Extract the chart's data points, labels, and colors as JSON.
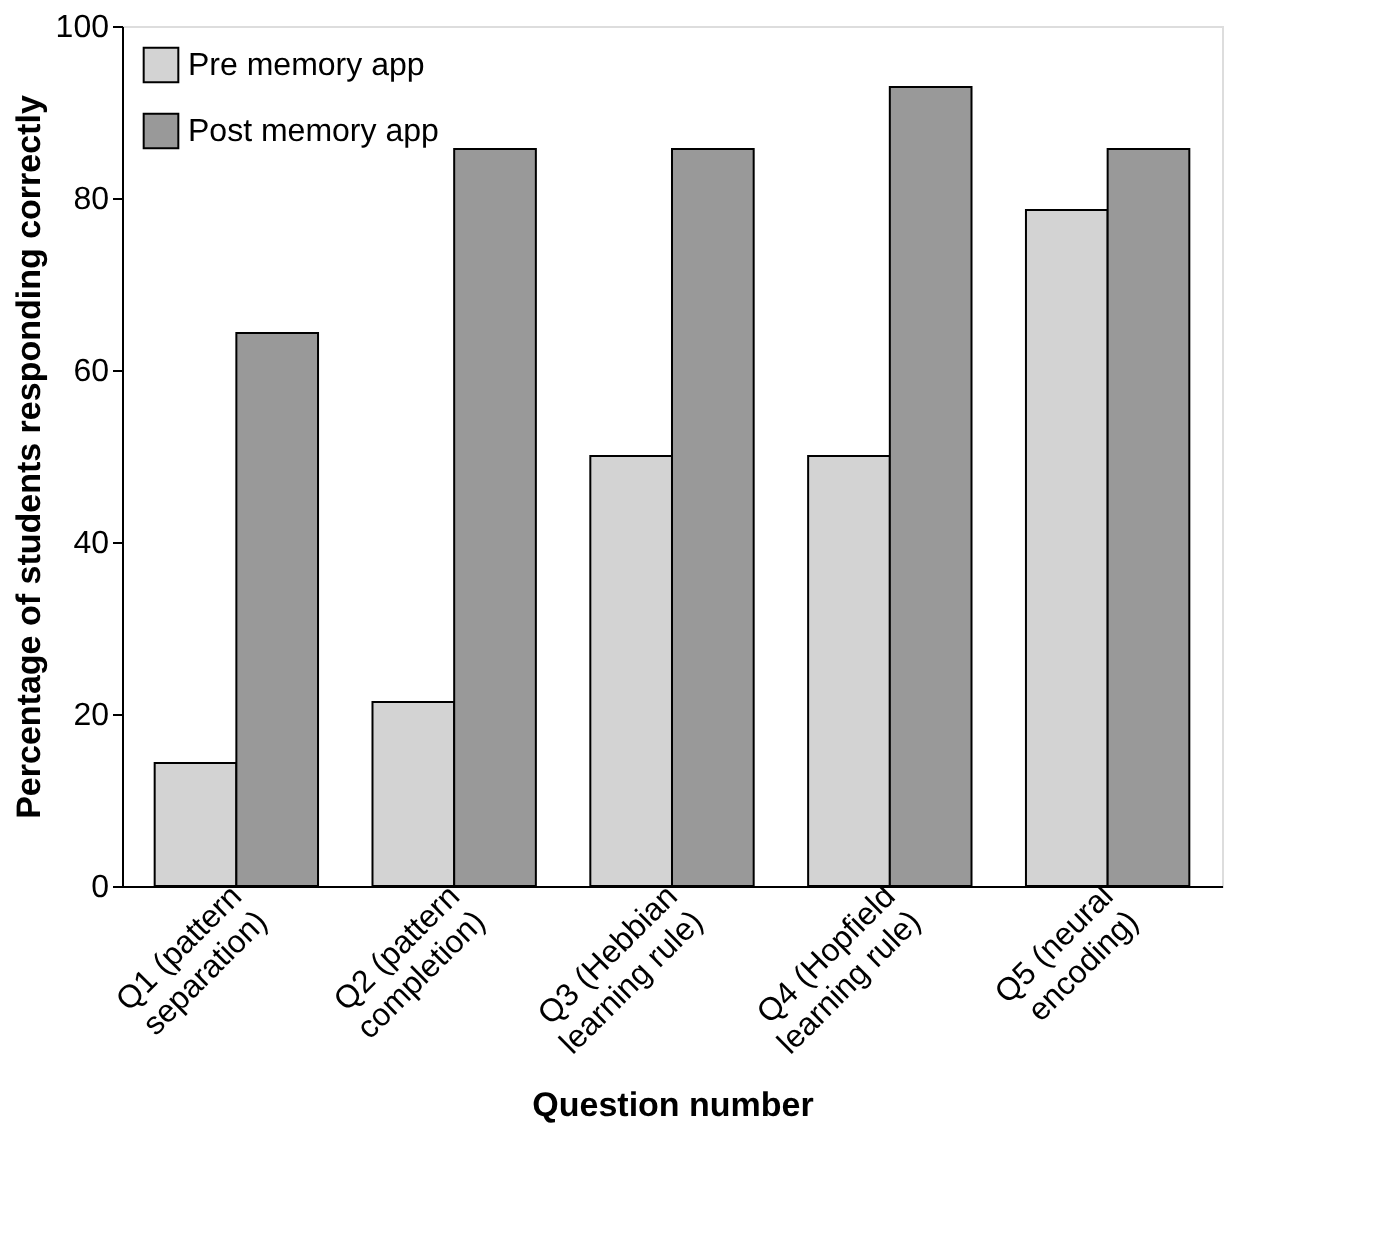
{
  "chart_data": {
    "type": "bar",
    "xlabel": "Question number",
    "ylabel": "Percentage of students responding correctly",
    "categories": [
      "Q1 (pattern separation)",
      "Q2 (pattern completion)",
      "Q3 (Hebbian learning rule)",
      "Q4 (Hopfield learning rule)",
      "Q5 (neural encoding)"
    ],
    "series": [
      {
        "name": "Pre memory app",
        "color": "#d3d3d3",
        "values": [
          14.3,
          21.4,
          50,
          50,
          78.6
        ]
      },
      {
        "name": "Post memory app",
        "color": "#999999",
        "values": [
          64.3,
          85.7,
          85.7,
          92.9,
          85.7
        ]
      }
    ],
    "ylim": [
      0,
      100
    ],
    "yticks": [
      0,
      20,
      40,
      60,
      80,
      100
    ],
    "grid": false,
    "legend": "top left"
  }
}
